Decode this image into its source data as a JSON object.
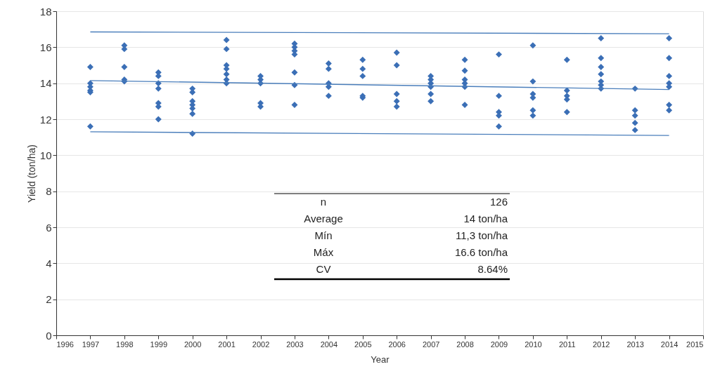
{
  "chart_data": {
    "type": "scatter",
    "xlabel": "Year",
    "ylabel": "Yield (ton/ha)",
    "xlim": [
      1996,
      2015
    ],
    "xticks": [
      1996,
      1997,
      1998,
      1999,
      2000,
      2001,
      2002,
      2003,
      2004,
      2005,
      2006,
      2007,
      2008,
      2009,
      2010,
      2011,
      2012,
      2013,
      2014,
      2015
    ],
    "ylim": [
      0,
      18
    ],
    "yticks": [
      0,
      2,
      4,
      6,
      8,
      10,
      12,
      14,
      16,
      18
    ],
    "grid": "y",
    "series": [
      {
        "marker": "diamond",
        "color": "#3b6fb6",
        "x": [
          1997,
          1997,
          1997,
          1997,
          1997,
          1997,
          1998,
          1998,
          1998,
          1998,
          1998,
          1999,
          1999,
          1999,
          1999,
          1999,
          1999,
          1999,
          2000,
          2000,
          2000,
          2000,
          2000,
          2000,
          2000,
          2001,
          2001,
          2001,
          2001,
          2001,
          2001,
          2001,
          2002,
          2002,
          2002,
          2002,
          2002,
          2003,
          2003,
          2003,
          2003,
          2003,
          2003,
          2003,
          2004,
          2004,
          2004,
          2004,
          2004,
          2005,
          2005,
          2005,
          2005,
          2005,
          2006,
          2006,
          2006,
          2006,
          2006,
          2007,
          2007,
          2007,
          2007,
          2007,
          2007,
          2008,
          2008,
          2008,
          2008,
          2008,
          2008,
          2009,
          2009,
          2009,
          2009,
          2009,
          2010,
          2010,
          2010,
          2010,
          2010,
          2010,
          2011,
          2011,
          2011,
          2011,
          2011,
          2012,
          2012,
          2012,
          2012,
          2012,
          2012,
          2012,
          2013,
          2013,
          2013,
          2013,
          2013,
          2014,
          2014,
          2014,
          2014,
          2014,
          2014,
          2014
        ],
        "values": [
          14.9,
          14.0,
          13.8,
          13.6,
          13.5,
          11.6,
          16.1,
          15.9,
          14.9,
          14.2,
          14.1,
          14.6,
          14.4,
          14.0,
          13.7,
          12.9,
          12.7,
          12.0,
          13.7,
          13.5,
          13.0,
          12.8,
          12.6,
          12.3,
          11.2,
          16.4,
          15.9,
          15.0,
          14.8,
          14.5,
          14.2,
          14.0,
          14.4,
          14.2,
          14.0,
          12.9,
          12.7,
          16.2,
          16.0,
          15.8,
          15.6,
          14.6,
          13.9,
          12.8,
          15.1,
          14.8,
          14.0,
          13.8,
          13.3,
          15.3,
          14.8,
          14.4,
          13.3,
          13.2,
          15.7,
          15.0,
          13.4,
          13.0,
          12.7,
          14.4,
          14.2,
          14.0,
          13.8,
          13.4,
          13.0,
          15.3,
          14.7,
          14.2,
          14.0,
          13.8,
          12.8,
          15.6,
          13.3,
          12.4,
          12.2,
          11.6,
          16.1,
          14.1,
          13.4,
          13.2,
          12.5,
          12.2,
          15.3,
          13.6,
          13.3,
          13.1,
          12.4,
          16.5,
          15.4,
          14.9,
          14.5,
          14.1,
          13.9,
          13.7,
          13.7,
          12.5,
          12.2,
          11.8,
          11.4,
          16.5,
          15.4,
          14.4,
          14.0,
          13.8,
          12.8,
          12.5
        ]
      },
      {
        "type": "line",
        "marker": "none",
        "line_style": "solid",
        "color": "#4a7ebb",
        "x": [
          1997,
          2014
        ],
        "values": [
          16.85,
          16.75
        ]
      },
      {
        "type": "line",
        "marker": "none",
        "line_style": "solid",
        "color": "#4a7ebb",
        "x": [
          1997,
          2014
        ],
        "values": [
          14.15,
          13.65
        ]
      },
      {
        "type": "line",
        "marker": "none",
        "line_style": "solid",
        "color": "#4a7ebb",
        "x": [
          1997,
          2014
        ],
        "values": [
          11.3,
          11.1
        ]
      }
    ],
    "annotations": [
      "n",
      "126",
      "Average",
      "14 ton/ha",
      "Mín",
      "11,3 ton/ha",
      "Máx",
      "16.6 ton/ha",
      "CV",
      "8.64%"
    ]
  }
}
